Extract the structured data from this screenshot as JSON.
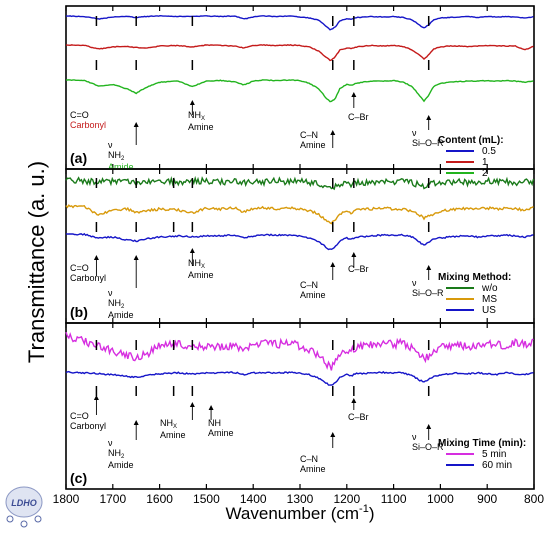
{
  "chart_data": [
    {
      "type": "line",
      "panel": "(a)",
      "legend_title": "Content (mL):",
      "legend_position": "bottom-right",
      "x_range": [
        1800,
        800
      ],
      "series": [
        {
          "name": "0.5",
          "color": "#1515c8",
          "x": [
            1800,
            1760,
            1730,
            1700,
            1670,
            1650,
            1630,
            1600,
            1560,
            1530,
            1500,
            1470,
            1440,
            1420,
            1400,
            1380,
            1350,
            1320,
            1300,
            1280,
            1260,
            1245,
            1235,
            1225,
            1215,
            1200,
            1190,
            1180,
            1150,
            1120,
            1100,
            1080,
            1060,
            1045,
            1035,
            1025,
            1015,
            1000,
            980,
            960,
            940,
            920,
            900,
            880,
            860,
            840,
            820,
            805,
            800
          ],
          "y": [
            0.0,
            0.05,
            0.3,
            0.1,
            0.05,
            0.15,
            0.05,
            0.0,
            0.05,
            0.02,
            0.0,
            0.04,
            0.0,
            0.3,
            0.1,
            0.0,
            0.05,
            0.0,
            0.1,
            0.2,
            0.4,
            1.0,
            1.4,
            1.1,
            0.5,
            0.25,
            0.35,
            0.15,
            0.05,
            0.1,
            0.05,
            0.15,
            0.4,
            0.9,
            1.2,
            0.9,
            0.4,
            0.2,
            0.15,
            0.1,
            0.05,
            0.15,
            0.05,
            0.1,
            0.05,
            0.1,
            0.2,
            0.1,
            0.05
          ]
        },
        {
          "name": "1",
          "color": "#c41a1a",
          "x": [
            1800,
            1760,
            1730,
            1700,
            1670,
            1650,
            1630,
            1600,
            1560,
            1530,
            1500,
            1470,
            1440,
            1420,
            1400,
            1380,
            1350,
            1320,
            1300,
            1280,
            1260,
            1245,
            1235,
            1225,
            1215,
            1200,
            1190,
            1180,
            1150,
            1120,
            1100,
            1080,
            1060,
            1045,
            1035,
            1025,
            1015,
            1000,
            980,
            960,
            940,
            920,
            900,
            880,
            860,
            840,
            820,
            805,
            800
          ],
          "y": [
            0.0,
            0.05,
            0.4,
            0.2,
            0.15,
            0.25,
            0.3,
            0.1,
            0.05,
            0.2,
            0.0,
            0.05,
            0.1,
            0.3,
            0.05,
            0.0,
            0.05,
            0.0,
            0.05,
            0.2,
            0.6,
            1.2,
            1.55,
            1.2,
            0.5,
            0.3,
            0.35,
            0.2,
            0.05,
            0.1,
            0.05,
            0.15,
            0.5,
            1.0,
            1.4,
            1.0,
            0.4,
            0.2,
            0.1,
            0.1,
            0.15,
            0.1,
            0.05,
            0.1,
            0.1,
            0.1,
            0.5,
            0.2,
            0.1
          ]
        },
        {
          "name": "2",
          "color": "#22b41e",
          "x": [
            1800,
            1760,
            1730,
            1700,
            1670,
            1650,
            1630,
            1600,
            1560,
            1530,
            1500,
            1470,
            1440,
            1420,
            1400,
            1380,
            1350,
            1320,
            1300,
            1280,
            1260,
            1245,
            1235,
            1225,
            1215,
            1200,
            1190,
            1180,
            1150,
            1120,
            1100,
            1080,
            1060,
            1045,
            1035,
            1025,
            1015,
            1000,
            980,
            960,
            940,
            920,
            900,
            880,
            860,
            840,
            820,
            805,
            800
          ],
          "y": [
            0.0,
            0.05,
            0.55,
            0.4,
            0.8,
            1.2,
            0.7,
            0.2,
            0.1,
            0.6,
            0.1,
            0.05,
            0.15,
            0.45,
            0.1,
            0.0,
            0.05,
            0.0,
            0.05,
            0.3,
            0.8,
            1.6,
            2.0,
            1.7,
            0.8,
            0.4,
            0.5,
            0.3,
            0.1,
            0.1,
            0.05,
            0.2,
            0.6,
            1.4,
            1.9,
            1.4,
            0.6,
            0.3,
            0.2,
            0.15,
            0.1,
            0.1,
            0.05,
            0.1,
            0.05,
            0.1,
            0.2,
            0.1,
            0.05
          ]
        }
      ],
      "annotations": [
        {
          "lines": [
            "C=O",
            "Carbonyl"
          ],
          "colors": [
            "#000000",
            "#c41a1a"
          ]
        },
        {
          "lines": [
            "ν",
            "NH2",
            "Amide"
          ],
          "colors": [
            "#000000",
            "#000000",
            "#22b41e"
          ]
        },
        {
          "lines": [
            "NHX",
            "Amine"
          ]
        },
        {
          "lines": [
            "C–N",
            "Amine"
          ]
        },
        {
          "lines": [
            "C–Br"
          ]
        },
        {
          "lines": [
            "ν",
            "Si–O–R"
          ]
        }
      ]
    },
    {
      "type": "line",
      "panel": "(b)",
      "legend_title": "Mixing Method:",
      "legend_position": "bottom-right",
      "x_range": [
        1800,
        800
      ],
      "series": [
        {
          "name": "w/o",
          "color": "#1a7a1a",
          "x": [
            1800,
            1760,
            1730,
            1700,
            1670,
            1650,
            1630,
            1600,
            1560,
            1530,
            1500,
            1470,
            1440,
            1420,
            1400,
            1380,
            1350,
            1320,
            1300,
            1280,
            1260,
            1245,
            1235,
            1225,
            1215,
            1200,
            1190,
            1180,
            1150,
            1120,
            1100,
            1080,
            1060,
            1045,
            1035,
            1025,
            1015,
            1000,
            980,
            960,
            940,
            920,
            900,
            880,
            860,
            840,
            820,
            805,
            800
          ],
          "y": [
            0.2,
            0.3,
            0.4,
            0.3,
            0.4,
            0.5,
            0.4,
            0.3,
            0.4,
            0.3,
            0.3,
            0.4,
            0.3,
            0.5,
            0.3,
            0.4,
            0.3,
            0.4,
            0.3,
            0.5,
            0.6,
            0.9,
            1.1,
            0.9,
            0.6,
            0.5,
            0.7,
            0.5,
            0.4,
            0.3,
            0.4,
            0.3,
            0.5,
            0.7,
            0.9,
            0.7,
            0.5,
            0.4,
            0.4,
            0.3,
            0.5,
            0.4,
            0.3,
            0.4,
            0.3,
            0.5,
            0.4,
            0.3,
            0.4
          ]
        },
        {
          "name": "MS",
          "color": "#d89a0c",
          "x": [
            1800,
            1760,
            1730,
            1700,
            1670,
            1650,
            1630,
            1600,
            1560,
            1530,
            1500,
            1470,
            1440,
            1420,
            1400,
            1380,
            1350,
            1320,
            1300,
            1280,
            1260,
            1245,
            1235,
            1225,
            1215,
            1200,
            1190,
            1180,
            1150,
            1120,
            1100,
            1080,
            1060,
            1045,
            1035,
            1025,
            1015,
            1000,
            980,
            960,
            940,
            920,
            900,
            880,
            860,
            840,
            820,
            805,
            800
          ],
          "y": [
            0.0,
            0.1,
            0.9,
            0.4,
            0.3,
            0.6,
            0.5,
            0.3,
            0.4,
            0.7,
            0.2,
            0.3,
            0.2,
            0.6,
            0.3,
            0.2,
            0.3,
            0.2,
            0.3,
            0.5,
            0.8,
            1.4,
            1.7,
            1.4,
            0.8,
            0.5,
            0.7,
            0.4,
            0.3,
            0.2,
            0.3,
            0.3,
            0.5,
            0.9,
            1.2,
            1.0,
            0.8,
            0.5,
            0.4,
            0.3,
            0.2,
            0.3,
            0.2,
            0.3,
            0.2,
            0.3,
            0.4,
            0.2,
            0.1
          ]
        },
        {
          "name": "US",
          "color": "#1515c8",
          "x": [
            1800,
            1760,
            1730,
            1700,
            1670,
            1650,
            1630,
            1600,
            1560,
            1530,
            1500,
            1470,
            1440,
            1420,
            1400,
            1380,
            1350,
            1320,
            1300,
            1280,
            1260,
            1245,
            1235,
            1225,
            1215,
            1200,
            1190,
            1180,
            1150,
            1120,
            1100,
            1080,
            1060,
            1045,
            1035,
            1025,
            1015,
            1000,
            980,
            960,
            940,
            920,
            900,
            880,
            860,
            840,
            820,
            805,
            800
          ],
          "y": [
            0.0,
            0.05,
            0.4,
            0.3,
            0.6,
            0.7,
            0.5,
            0.3,
            0.2,
            0.3,
            0.2,
            0.2,
            0.1,
            0.4,
            0.2,
            0.1,
            0.1,
            0.1,
            0.2,
            0.4,
            0.8,
            1.3,
            1.6,
            1.3,
            0.7,
            0.4,
            0.5,
            0.3,
            0.2,
            0.1,
            0.1,
            0.1,
            0.3,
            0.8,
            1.1,
            0.8,
            0.5,
            0.4,
            0.3,
            0.2,
            0.2,
            0.3,
            0.2,
            0.2,
            0.1,
            0.2,
            0.3,
            0.1,
            0.05
          ]
        }
      ],
      "annotations": [
        {
          "lines": [
            "C=O",
            "Carbonyl"
          ]
        },
        {
          "lines": [
            "ν",
            "NH2",
            "Amide"
          ]
        },
        {
          "lines": [
            "NHX",
            "Amine"
          ]
        },
        {
          "lines": [
            "C–N",
            "Amine"
          ]
        },
        {
          "lines": [
            "C–Br"
          ]
        },
        {
          "lines": [
            "ν",
            "Si–O–R"
          ]
        }
      ]
    },
    {
      "type": "line",
      "panel": "(c)",
      "legend_title": "Mixing Time (min):",
      "legend_position": "bottom-right",
      "x_range": [
        1800,
        800
      ],
      "series": [
        {
          "name": "5 min",
          "color": "#d62ee0",
          "x": [
            1800,
            1760,
            1730,
            1700,
            1670,
            1650,
            1630,
            1600,
            1560,
            1530,
            1500,
            1470,
            1440,
            1420,
            1400,
            1380,
            1350,
            1320,
            1300,
            1280,
            1260,
            1245,
            1235,
            1225,
            1215,
            1200,
            1190,
            1180,
            1150,
            1120,
            1100,
            1080,
            1060,
            1045,
            1035,
            1025,
            1015,
            1000,
            980,
            960,
            940,
            920,
            900,
            880,
            860,
            840,
            820,
            805,
            800
          ],
          "y": [
            0.0,
            0.3,
            0.6,
            0.9,
            1.1,
            1.4,
            1.1,
            0.6,
            0.5,
            0.7,
            0.6,
            0.7,
            0.5,
            0.8,
            0.5,
            0.4,
            0.5,
            0.4,
            0.6,
            0.8,
            1.1,
            1.6,
            1.9,
            1.6,
            1.0,
            0.8,
            0.9,
            0.7,
            0.5,
            0.4,
            0.5,
            0.4,
            0.7,
            1.1,
            1.4,
            1.2,
            0.9,
            0.7,
            0.6,
            0.5,
            0.7,
            0.5,
            0.4,
            0.5,
            0.6,
            0.4,
            0.5,
            0.4,
            0.3
          ]
        },
        {
          "name": "60 min",
          "color": "#1515c8",
          "x": [
            1800,
            1760,
            1730,
            1700,
            1670,
            1650,
            1630,
            1600,
            1560,
            1530,
            1500,
            1470,
            1440,
            1420,
            1400,
            1380,
            1350,
            1320,
            1300,
            1280,
            1260,
            1245,
            1235,
            1225,
            1215,
            1200,
            1190,
            1180,
            1150,
            1120,
            1100,
            1080,
            1060,
            1045,
            1035,
            1025,
            1015,
            1000,
            980,
            960,
            940,
            920,
            900,
            880,
            860,
            840,
            820,
            805,
            800
          ],
          "y": [
            0.0,
            0.1,
            0.2,
            0.3,
            0.5,
            0.6,
            0.4,
            0.2,
            0.1,
            0.2,
            0.1,
            0.1,
            0.05,
            0.3,
            0.1,
            0.05,
            0.1,
            0.05,
            0.1,
            0.3,
            0.7,
            1.2,
            1.5,
            1.2,
            0.6,
            0.3,
            0.4,
            0.2,
            0.1,
            0.05,
            0.1,
            0.1,
            0.4,
            0.9,
            1.1,
            0.8,
            0.5,
            0.3,
            0.2,
            0.1,
            0.2,
            0.1,
            0.2,
            0.3,
            0.1,
            0.2,
            0.3,
            0.1,
            0.05
          ]
        }
      ],
      "annotations": [
        {
          "lines": [
            "C=O",
            "Carbonyl"
          ]
        },
        {
          "lines": [
            "ν",
            "NH2",
            "Amide"
          ]
        },
        {
          "lines": [
            "NHX",
            "Amine"
          ]
        },
        {
          "lines": [
            "NH",
            "Amine"
          ]
        },
        {
          "lines": [
            "C–N",
            "Amine"
          ]
        },
        {
          "lines": [
            "C–Br"
          ]
        },
        {
          "lines": [
            "ν",
            "Si–O–R"
          ]
        }
      ]
    }
  ],
  "axes": {
    "xlabel": "Wavenumber (cm",
    "xlabel_sup": "-1",
    "xlabel_end": ")",
    "ylabel": "Transmittance (a. u.)",
    "xticks": [
      1800,
      1700,
      1600,
      1500,
      1400,
      1300,
      1200,
      1100,
      1000,
      900,
      800
    ],
    "grid": false
  },
  "logo": {
    "text": "LDHO"
  }
}
